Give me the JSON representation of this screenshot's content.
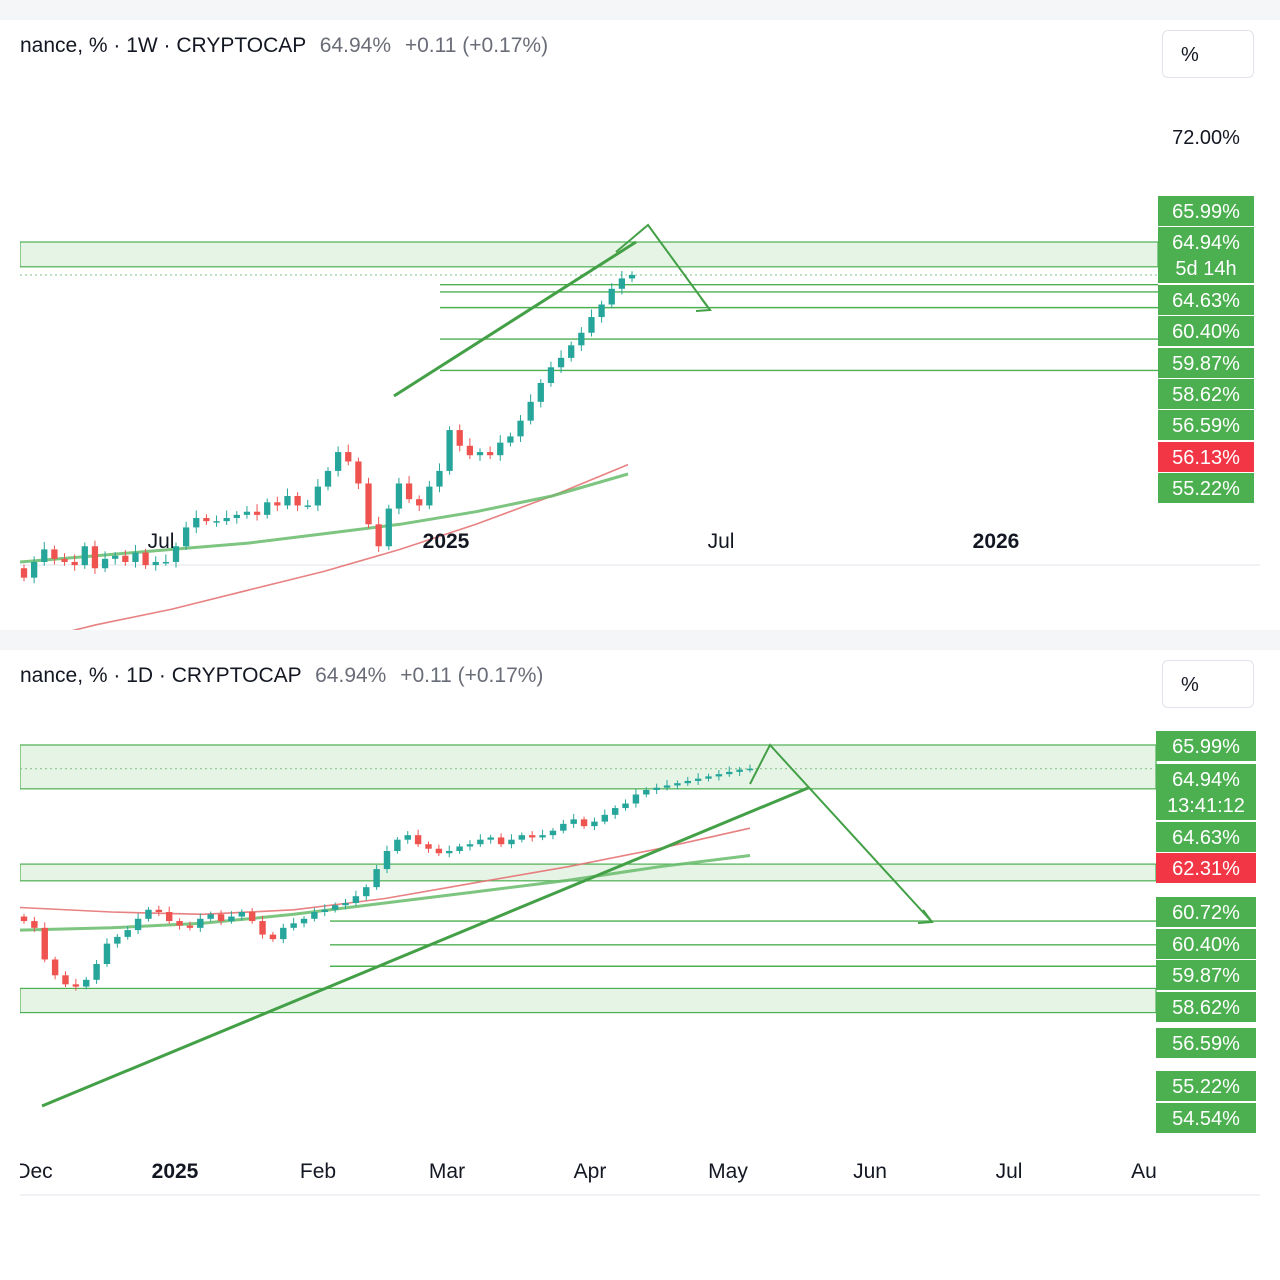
{
  "weekly": {
    "legend": {
      "symbol": "nance, % · 1W · CRYPTOCAP",
      "value": "64.94%",
      "change": "+0.11 (+0.17%)"
    },
    "scale_button": "%",
    "axis_top_labels": [
      "72.00%"
    ],
    "price_labels": [
      {
        "text": "65.99%",
        "color": "#4caf50"
      },
      {
        "text": "64.94%",
        "color": "#4caf50"
      },
      {
        "text": "5d 14h",
        "color": "#4caf50"
      },
      {
        "text": "64.63%",
        "color": "#4caf50"
      },
      {
        "text": "60.40%",
        "color": "#4caf50"
      },
      {
        "text": "59.87%",
        "color": "#4caf50"
      },
      {
        "text": "58.62%",
        "color": "#4caf50"
      },
      {
        "text": "56.59%",
        "color": "#4caf50"
      },
      {
        "text": "56.13%",
        "color": "#f23645"
      },
      {
        "text": "55.22%",
        "color": "#4caf50"
      }
    ],
    "time_labels": [
      {
        "text": "Jul",
        "bold": false
      },
      {
        "text": "2025",
        "bold": true
      },
      {
        "text": "Jul",
        "bold": false
      },
      {
        "text": "2026",
        "bold": true
      }
    ]
  },
  "daily": {
    "legend": {
      "symbol": "nance, % · 1D · CRYPTOCAP",
      "value": "64.94%",
      "change": "+0.11 (+0.17%)"
    },
    "scale_button": "%",
    "price_labels": [
      {
        "text": "65.99%",
        "color": "#4caf50"
      },
      {
        "text": "64.94%",
        "color": "#4caf50"
      },
      {
        "text": "13:41:12",
        "color": "#4caf50"
      },
      {
        "text": "64.63%",
        "color": "#4caf50"
      },
      {
        "text": "62.31%",
        "color": "#f23645"
      },
      {
        "text": "60.72%",
        "color": "#4caf50"
      },
      {
        "text": "60.40%",
        "color": "#4caf50"
      },
      {
        "text": "59.87%",
        "color": "#4caf50"
      },
      {
        "text": "58.62%",
        "color": "#4caf50"
      },
      {
        "text": "56.59%",
        "color": "#4caf50"
      },
      {
        "text": "55.22%",
        "color": "#4caf50"
      },
      {
        "text": "54.54%",
        "color": "#4caf50"
      }
    ],
    "time_labels": [
      {
        "text": "Dec",
        "bold": false
      },
      {
        "text": "2025",
        "bold": true
      },
      {
        "text": "Feb",
        "bold": false
      },
      {
        "text": "Mar",
        "bold": false
      },
      {
        "text": "Apr",
        "bold": false
      },
      {
        "text": "May",
        "bold": false
      },
      {
        "text": "Jun",
        "bold": false
      },
      {
        "text": "Jul",
        "bold": false
      },
      {
        "text": "Au",
        "bold": false
      }
    ]
  },
  "colors": {
    "up": "#26a69a",
    "down": "#ef5350",
    "zone": "#4caf50",
    "ema_red": "#e57373",
    "ma_green": "#66bb6a"
  },
  "chart_data": [
    {
      "type": "candlestick",
      "title": "",
      "timeframe": "1W",
      "x_ticks": [
        "Jul",
        "2025",
        "Jul",
        "2026"
      ],
      "y_ticks": [
        "72.00%"
      ],
      "current_value": 64.94,
      "horizontal_levels": [
        65.99,
        64.94,
        64.63,
        60.4,
        59.87,
        58.62,
        56.59,
        56.13,
        55.22
      ],
      "close": [
        55.3,
        55.8,
        56.2,
        55.9,
        55.8,
        55.7,
        56.3,
        55.6,
        55.9,
        56.0,
        55.8,
        56.1,
        55.7,
        55.8,
        55.8,
        56.3,
        56.9,
        57.2,
        57.1,
        57.1,
        57.2,
        57.3,
        57.4,
        57.3,
        57.7,
        57.6,
        57.9,
        57.6,
        57.6,
        58.2,
        58.7,
        59.3,
        59.0,
        58.3,
        57.0,
        56.3,
        57.5,
        58.3,
        57.8,
        57.6,
        58.2,
        58.7,
        60.0,
        59.5,
        59.2,
        59.3,
        59.2,
        59.6,
        59.8,
        60.3,
        60.9,
        61.5,
        62.0,
        62.3,
        62.7,
        63.1,
        63.6,
        64.0,
        64.5,
        64.83,
        64.94
      ],
      "open": [
        55.6,
        55.3,
        55.8,
        56.2,
        55.9,
        55.8,
        55.7,
        56.3,
        55.6,
        55.9,
        56.0,
        55.8,
        56.1,
        55.7,
        55.8,
        55.8,
        56.3,
        56.9,
        57.2,
        57.1,
        57.1,
        57.2,
        57.3,
        57.4,
        57.3,
        57.7,
        57.6,
        57.9,
        57.6,
        57.6,
        58.2,
        58.7,
        59.3,
        59.0,
        58.3,
        57.0,
        56.3,
        57.5,
        58.3,
        57.8,
        57.6,
        58.2,
        58.7,
        60.0,
        59.5,
        59.2,
        59.3,
        59.2,
        59.6,
        59.8,
        60.3,
        60.9,
        61.5,
        62.0,
        62.3,
        62.7,
        63.1,
        63.6,
        64.0,
        64.5,
        64.83
      ],
      "series": [
        {
          "name": "",
          "kind": "ema",
          "values": [
            53.2,
            53.8,
            54.3,
            54.9,
            55.5,
            56.2,
            57.0,
            57.9,
            58.9
          ]
        },
        {
          "name": "",
          "kind": "ma",
          "values": [
            55.8,
            56.0,
            56.2,
            56.4,
            56.7,
            57.0,
            57.4,
            57.9,
            58.6
          ]
        }
      ]
    },
    {
      "type": "candlestick",
      "title": "",
      "timeframe": "1D",
      "x_ticks": [
        "Dec",
        "2025",
        "Feb",
        "Mar",
        "Apr",
        "May",
        "Jun",
        "Jul",
        "Au"
      ],
      "current_value": 64.94,
      "horizontal_levels": [
        65.99,
        64.94,
        64.63,
        62.31,
        60.72,
        60.4,
        59.87,
        58.62,
        56.59,
        55.22,
        54.54
      ],
      "close": [
        58.2,
        57.9,
        56.5,
        55.8,
        55.4,
        55.3,
        55.6,
        56.3,
        57.2,
        57.5,
        57.8,
        58.3,
        58.7,
        58.6,
        58.2,
        58.0,
        57.9,
        58.3,
        58.5,
        58.2,
        58.4,
        58.6,
        58.2,
        57.6,
        57.4,
        57.9,
        58.1,
        58.3,
        58.6,
        58.7,
        58.9,
        59.0,
        59.3,
        59.7,
        60.5,
        61.3,
        61.8,
        62.0,
        61.6,
        61.4,
        61.2,
        61.3,
        61.5,
        61.6,
        61.8,
        61.9,
        61.6,
        61.8,
        62.0,
        61.9,
        62.0,
        62.2,
        62.5,
        62.7,
        62.4,
        62.6,
        62.9,
        63.2,
        63.4,
        63.8,
        64.0,
        64.1,
        64.2,
        64.3,
        64.4,
        64.5,
        64.6,
        64.7,
        64.8,
        64.9,
        64.94
      ],
      "series": [
        {
          "name": "",
          "kind": "ema",
          "values": [
            58.8,
            58.6,
            58.5,
            58.7,
            59.2,
            59.9,
            60.6,
            61.4,
            62.31
          ]
        },
        {
          "name": "",
          "kind": "ma",
          "values": [
            57.8,
            57.9,
            58.1,
            58.5,
            59.0,
            59.5,
            60.0,
            60.6,
            61.1
          ]
        }
      ]
    }
  ]
}
